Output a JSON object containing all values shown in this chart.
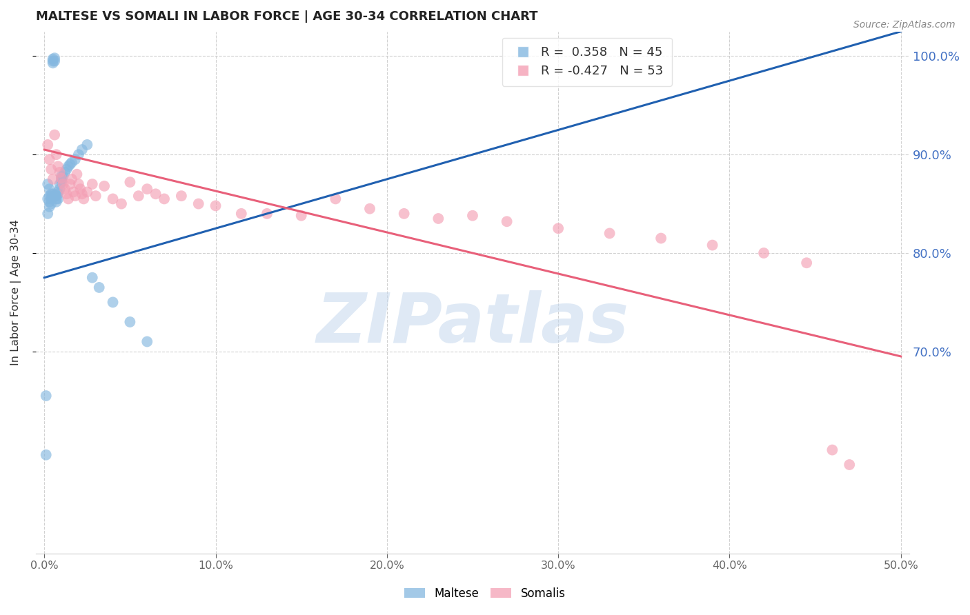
{
  "title": "MALTESE VS SOMALI IN LABOR FORCE | AGE 30-34 CORRELATION CHART",
  "source": "Source: ZipAtlas.com",
  "ylabel": "In Labor Force | Age 30-34",
  "r_maltese": 0.358,
  "n_maltese": 45,
  "r_somali": -0.427,
  "n_somali": 53,
  "xlim": [
    -0.005,
    0.505
  ],
  "ylim": [
    0.495,
    1.025
  ],
  "yticks": [
    0.7,
    0.8,
    0.9,
    1.0
  ],
  "xticks": [
    0.0,
    0.1,
    0.2,
    0.3,
    0.4,
    0.5
  ],
  "bg_color": "#ffffff",
  "blue_color": "#85b8e0",
  "pink_color": "#f4a0b5",
  "trend_blue": "#2060b0",
  "trend_pink": "#e8607a",
  "watermark": "ZIPatlas",
  "maltese_x": [
    0.001,
    0.001,
    0.002,
    0.002,
    0.002,
    0.003,
    0.003,
    0.003,
    0.003,
    0.004,
    0.004,
    0.004,
    0.005,
    0.005,
    0.005,
    0.005,
    0.006,
    0.006,
    0.006,
    0.007,
    0.007,
    0.007,
    0.008,
    0.008,
    0.008,
    0.009,
    0.009,
    0.01,
    0.01,
    0.01,
    0.011,
    0.012,
    0.013,
    0.014,
    0.015,
    0.016,
    0.018,
    0.02,
    0.022,
    0.025,
    0.028,
    0.032,
    0.04,
    0.05,
    0.06
  ],
  "maltese_y": [
    0.655,
    0.595,
    0.87,
    0.855,
    0.84,
    0.865,
    0.858,
    0.852,
    0.847,
    0.86,
    0.855,
    0.85,
    0.997,
    0.995,
    0.993,
    0.86,
    0.998,
    0.995,
    0.858,
    0.858,
    0.855,
    0.852,
    0.862,
    0.86,
    0.855,
    0.87,
    0.865,
    0.878,
    0.875,
    0.872,
    0.878,
    0.882,
    0.885,
    0.888,
    0.89,
    0.892,
    0.895,
    0.9,
    0.905,
    0.91,
    0.775,
    0.765,
    0.75,
    0.73,
    0.71
  ],
  "somali_x": [
    0.002,
    0.003,
    0.004,
    0.005,
    0.006,
    0.007,
    0.008,
    0.009,
    0.01,
    0.011,
    0.012,
    0.013,
    0.014,
    0.015,
    0.016,
    0.017,
    0.018,
    0.019,
    0.02,
    0.021,
    0.022,
    0.023,
    0.025,
    0.028,
    0.03,
    0.035,
    0.04,
    0.045,
    0.05,
    0.055,
    0.06,
    0.065,
    0.07,
    0.08,
    0.09,
    0.1,
    0.115,
    0.13,
    0.15,
    0.17,
    0.19,
    0.21,
    0.23,
    0.25,
    0.27,
    0.3,
    0.33,
    0.36,
    0.39,
    0.42,
    0.445,
    0.46,
    0.47
  ],
  "somali_y": [
    0.91,
    0.895,
    0.885,
    0.875,
    0.92,
    0.9,
    0.888,
    0.882,
    0.876,
    0.87,
    0.865,
    0.86,
    0.855,
    0.87,
    0.875,
    0.862,
    0.858,
    0.88,
    0.87,
    0.865,
    0.86,
    0.855,
    0.862,
    0.87,
    0.858,
    0.868,
    0.855,
    0.85,
    0.872,
    0.858,
    0.865,
    0.86,
    0.855,
    0.858,
    0.85,
    0.848,
    0.84,
    0.84,
    0.838,
    0.855,
    0.845,
    0.84,
    0.835,
    0.838,
    0.832,
    0.825,
    0.82,
    0.815,
    0.808,
    0.8,
    0.79,
    0.6,
    0.585
  ]
}
